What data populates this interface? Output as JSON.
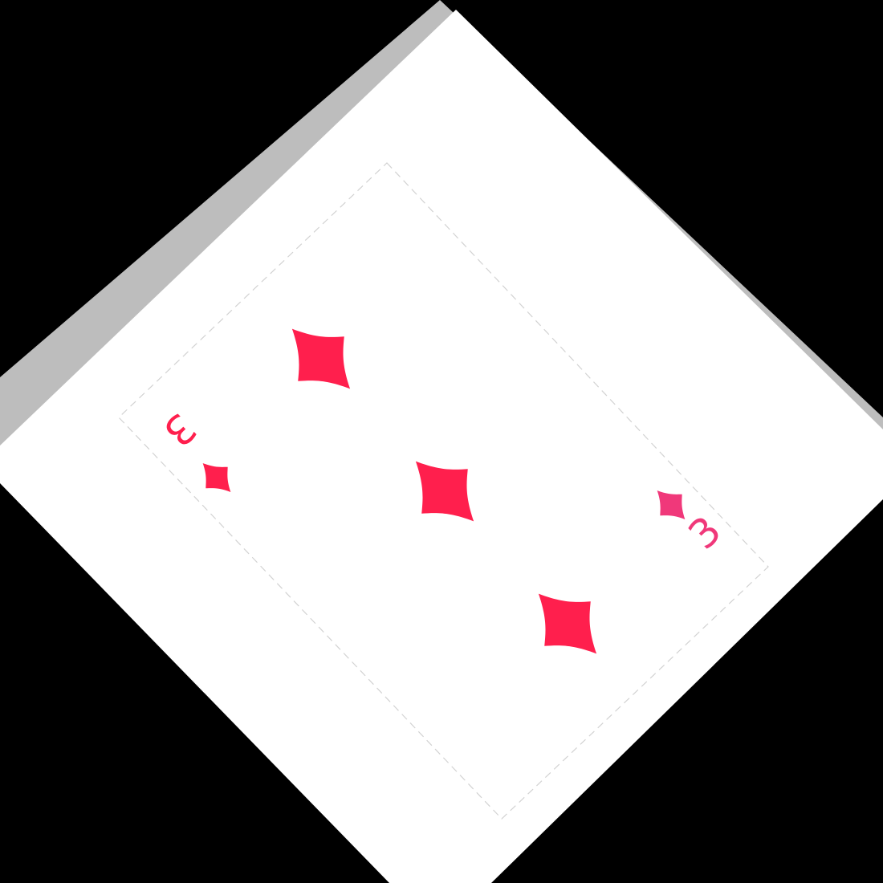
{
  "card": {
    "rank": "3",
    "suit": "diamonds",
    "pip_count": 3,
    "suit_icon": "diamond-icon",
    "colors": {
      "suit": "#ff1f4d",
      "card_face": "#ffffff",
      "card_shadow": "#bdbdbd",
      "background": "#000000",
      "border_dash": "#cfcfcf"
    }
  }
}
